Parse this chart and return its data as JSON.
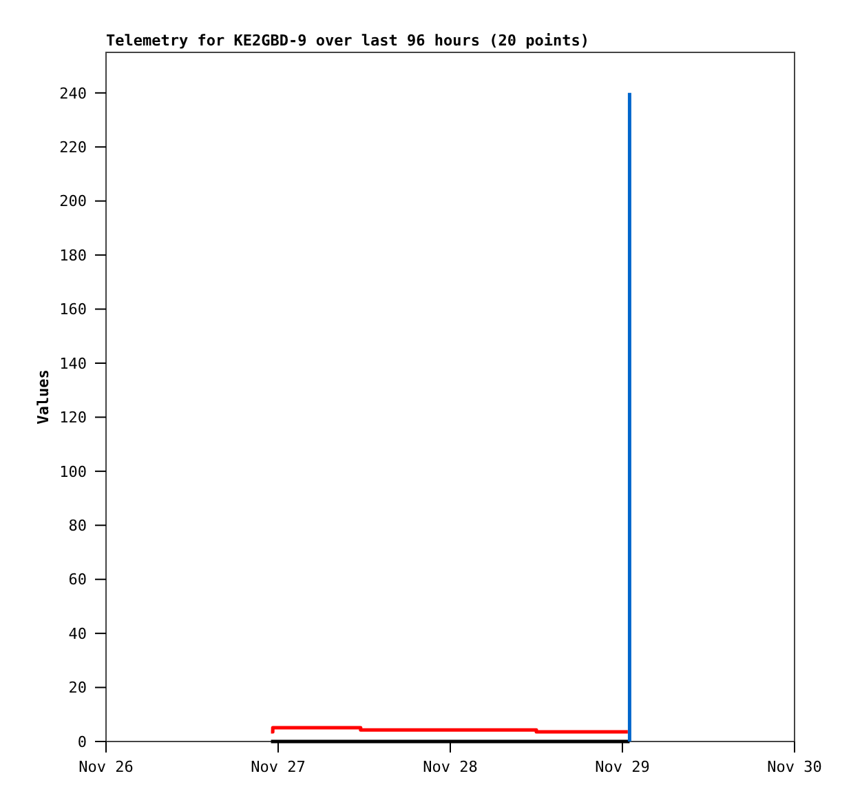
{
  "chart_data": {
    "type": "step",
    "title": "Telemetry for KE2GBD-9 over last 96 hours (20 points)",
    "ylabel": "Values",
    "xlim": [
      "--11-26",
      "--11-30"
    ],
    "xticks": [
      {
        "value": "--11-26",
        "label": "Nov 26"
      },
      {
        "value": "--11-27",
        "label": "Nov 27"
      },
      {
        "value": "--11-28",
        "label": "Nov 28"
      },
      {
        "value": "--11-29",
        "label": "Nov 29"
      },
      {
        "value": "--11-30",
        "label": "Nov 30"
      }
    ],
    "ylim": [
      0,
      255
    ],
    "yticks": [
      0,
      20,
      40,
      60,
      80,
      100,
      120,
      140,
      160,
      180,
      200,
      220,
      240
    ],
    "grid": false,
    "series": [
      {
        "color": "#000000",
        "x": [
          "--11-26T23:00",
          "--11-29T01:00"
        ],
        "values": [
          0,
          0
        ]
      },
      {
        "color": "#ff0000",
        "x": [
          "--11-26T23:00",
          "--11-26T23:15",
          "--11-27T11:30",
          "--11-28T12:00",
          "--11-29T00:45"
        ],
        "values": [
          3.6,
          5.1,
          4.3,
          3.6,
          3.6
        ]
      },
      {
        "color": "#0066cc",
        "x": [
          "--11-29T01:00",
          "--11-29T01:00"
        ],
        "values": [
          0,
          240
        ]
      }
    ]
  }
}
